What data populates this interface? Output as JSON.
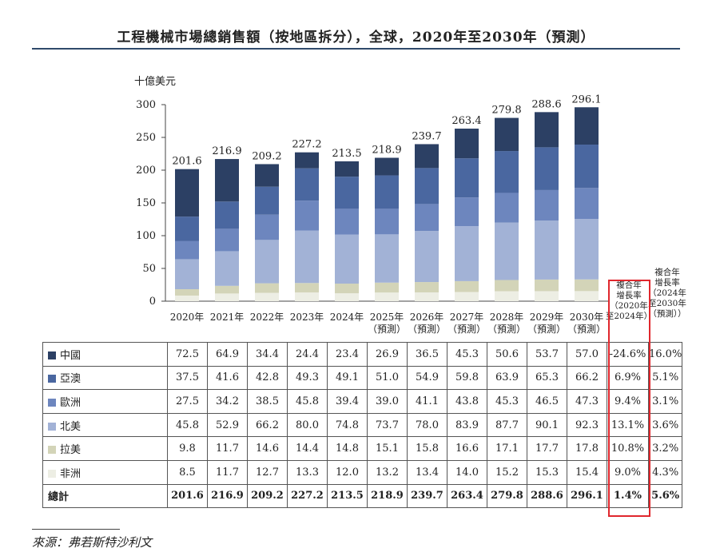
{
  "title": "工程機械市場總銷售額（按地區拆分），全球，2020年至2030年（預測）",
  "source": "來源：弗若斯特沙利文",
  "colors": {
    "中國": "#2c4064",
    "亞澳": "#4a67a0",
    "歐洲": "#6d86be",
    "北美": "#a2b2d6",
    "拉美": "#d3d4b8",
    "非洲": "#edeee4"
  },
  "chart_data": {
    "type": "bar",
    "stacked": true,
    "ylabel": "十億美元",
    "ylim": [
      0,
      300
    ],
    "yticks": [
      "0",
      "50",
      "100",
      "150",
      "200",
      "250",
      "300"
    ],
    "categories": [
      [
        "2020年"
      ],
      [
        "2021年"
      ],
      [
        "2022年"
      ],
      [
        "2023年"
      ],
      [
        "2024年"
      ],
      [
        "2025年",
        "（預測）"
      ],
      [
        "2026年",
        "（預測）"
      ],
      [
        "2027年",
        "（預測）"
      ],
      [
        "2028年",
        "（預測）"
      ],
      [
        "2029年",
        "（預測）"
      ],
      [
        "2030年",
        "（預測）"
      ]
    ],
    "series": [
      {
        "name": "非洲",
        "values": [
          8.5,
          11.7,
          12.7,
          13.3,
          12.0,
          13.2,
          13.4,
          14.0,
          15.2,
          15.3,
          15.4
        ]
      },
      {
        "name": "拉美",
        "values": [
          9.8,
          11.7,
          14.6,
          14.4,
          14.8,
          15.1,
          15.8,
          16.6,
          17.1,
          17.7,
          17.8
        ]
      },
      {
        "name": "北美",
        "values": [
          45.8,
          52.9,
          66.2,
          80.0,
          74.8,
          73.7,
          78.0,
          83.9,
          87.7,
          90.1,
          92.3
        ]
      },
      {
        "name": "歐洲",
        "values": [
          27.5,
          34.2,
          38.5,
          45.8,
          39.4,
          39.0,
          41.1,
          43.8,
          45.3,
          46.5,
          47.3
        ]
      },
      {
        "name": "亞澳",
        "values": [
          37.5,
          41.6,
          42.8,
          49.3,
          49.1,
          51.0,
          54.9,
          59.8,
          63.9,
          65.3,
          66.2
        ]
      },
      {
        "name": "中國",
        "values": [
          72.5,
          64.9,
          34.4,
          24.4,
          23.4,
          26.9,
          36.5,
          45.3,
          50.6,
          53.7,
          57.0
        ]
      }
    ],
    "totals": [
      "201.6",
      "216.9",
      "209.2",
      "227.2",
      "213.5",
      "218.9",
      "239.7",
      "263.4",
      "279.8",
      "288.6",
      "296.1"
    ],
    "cagr_headers": [
      [
        "複合年",
        "增長率",
        "（2020年",
        "至2024年）"
      ],
      [
        "複合年",
        "增長率",
        "（2024年",
        "至2030年",
        "（預測））"
      ]
    ]
  },
  "table": {
    "rows": [
      {
        "name": "中國",
        "cells": [
          "72.5",
          "64.9",
          "34.4",
          "24.4",
          "23.4",
          "26.9",
          "36.5",
          "45.3",
          "50.6",
          "53.7",
          "57.0",
          "-24.6%",
          "16.0%"
        ]
      },
      {
        "name": "亞澳",
        "cells": [
          "37.5",
          "41.6",
          "42.8",
          "49.3",
          "49.1",
          "51.0",
          "54.9",
          "59.8",
          "63.9",
          "65.3",
          "66.2",
          "6.9%",
          "5.1%"
        ]
      },
      {
        "name": "歐洲",
        "cells": [
          "27.5",
          "34.2",
          "38.5",
          "45.8",
          "39.4",
          "39.0",
          "41.1",
          "43.8",
          "45.3",
          "46.5",
          "47.3",
          "9.4%",
          "3.1%"
        ]
      },
      {
        "name": "北美",
        "cells": [
          "45.8",
          "52.9",
          "66.2",
          "80.0",
          "74.8",
          "73.7",
          "78.0",
          "83.9",
          "87.7",
          "90.1",
          "92.3",
          "13.1%",
          "3.6%"
        ]
      },
      {
        "name": "拉美",
        "cells": [
          "9.8",
          "11.7",
          "14.6",
          "14.4",
          "14.8",
          "15.1",
          "15.8",
          "16.6",
          "17.1",
          "17.7",
          "17.8",
          "10.8%",
          "3.2%"
        ]
      },
      {
        "name": "非洲",
        "cells": [
          "8.5",
          "11.7",
          "12.7",
          "13.3",
          "12.0",
          "13.2",
          "13.4",
          "14.0",
          "15.2",
          "15.3",
          "15.4",
          "9.0%",
          "4.3%"
        ]
      }
    ],
    "total": {
      "name": "總計",
      "cells": [
        "201.6",
        "216.9",
        "209.2",
        "227.2",
        "213.5",
        "218.9",
        "239.7",
        "263.4",
        "279.8",
        "288.6",
        "296.1",
        "1.4%",
        "5.6%"
      ]
    }
  }
}
